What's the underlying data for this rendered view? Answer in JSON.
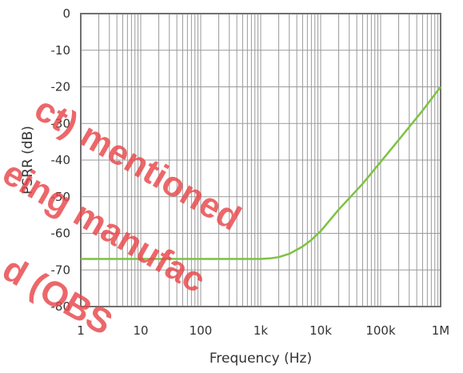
{
  "chart_data": {
    "type": "line",
    "title": "",
    "xlabel": "Frequency (Hz)",
    "ylabel": "PSRR (dB)",
    "x_scale": "log",
    "xlim": [
      1,
      1000000
    ],
    "ylim": [
      -80,
      0
    ],
    "grid": true,
    "x_ticks": [
      1,
      10,
      100,
      1000,
      10000,
      100000,
      1000000
    ],
    "x_tick_labels": [
      "1",
      "10",
      "100",
      "1k",
      "10k",
      "100k",
      "1M"
    ],
    "y_ticks": [
      0,
      -10,
      -20,
      -30,
      -40,
      -50,
      -60,
      -70,
      -80
    ],
    "y_tick_labels": [
      "0",
      "-10",
      "-20",
      "-30",
      "-40",
      "-50",
      "-60",
      "-70",
      "-80"
    ],
    "series": [
      {
        "color": "#7dc242",
        "x": [
          1,
          10,
          100,
          1000,
          1500,
          2000,
          3000,
          5000,
          7000,
          10000,
          20000,
          50000,
          100000,
          200000,
          500000,
          1000000
        ],
        "y": [
          -67,
          -67,
          -67,
          -67,
          -66.8,
          -66.5,
          -65.6,
          -63.6,
          -61.8,
          -59.4,
          -53.5,
          -46.5,
          -40.5,
          -34.5,
          -26.5,
          -20
        ]
      }
    ],
    "watermark_lines": [
      "ct) mentioned",
      "eing manufac",
      "d (OBS"
    ],
    "colors": {
      "frame": "#707070",
      "grid": "#9a9a9a",
      "line": "#7dc242",
      "watermark": "#e8464a"
    }
  }
}
